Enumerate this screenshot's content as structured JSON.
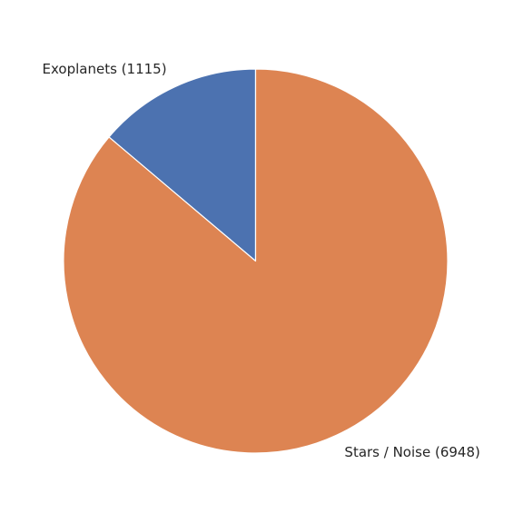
{
  "chart_data": {
    "type": "pie",
    "title": "",
    "start_angle_deg": 90,
    "direction": "counterclockwise",
    "slices": [
      {
        "label": "Exoplanets (1115)",
        "value": 1115,
        "color": "#4c72b0"
      },
      {
        "label": "Stars / Noise (6948)",
        "value": 6948,
        "color": "#dd8452"
      }
    ],
    "legend": "none"
  }
}
